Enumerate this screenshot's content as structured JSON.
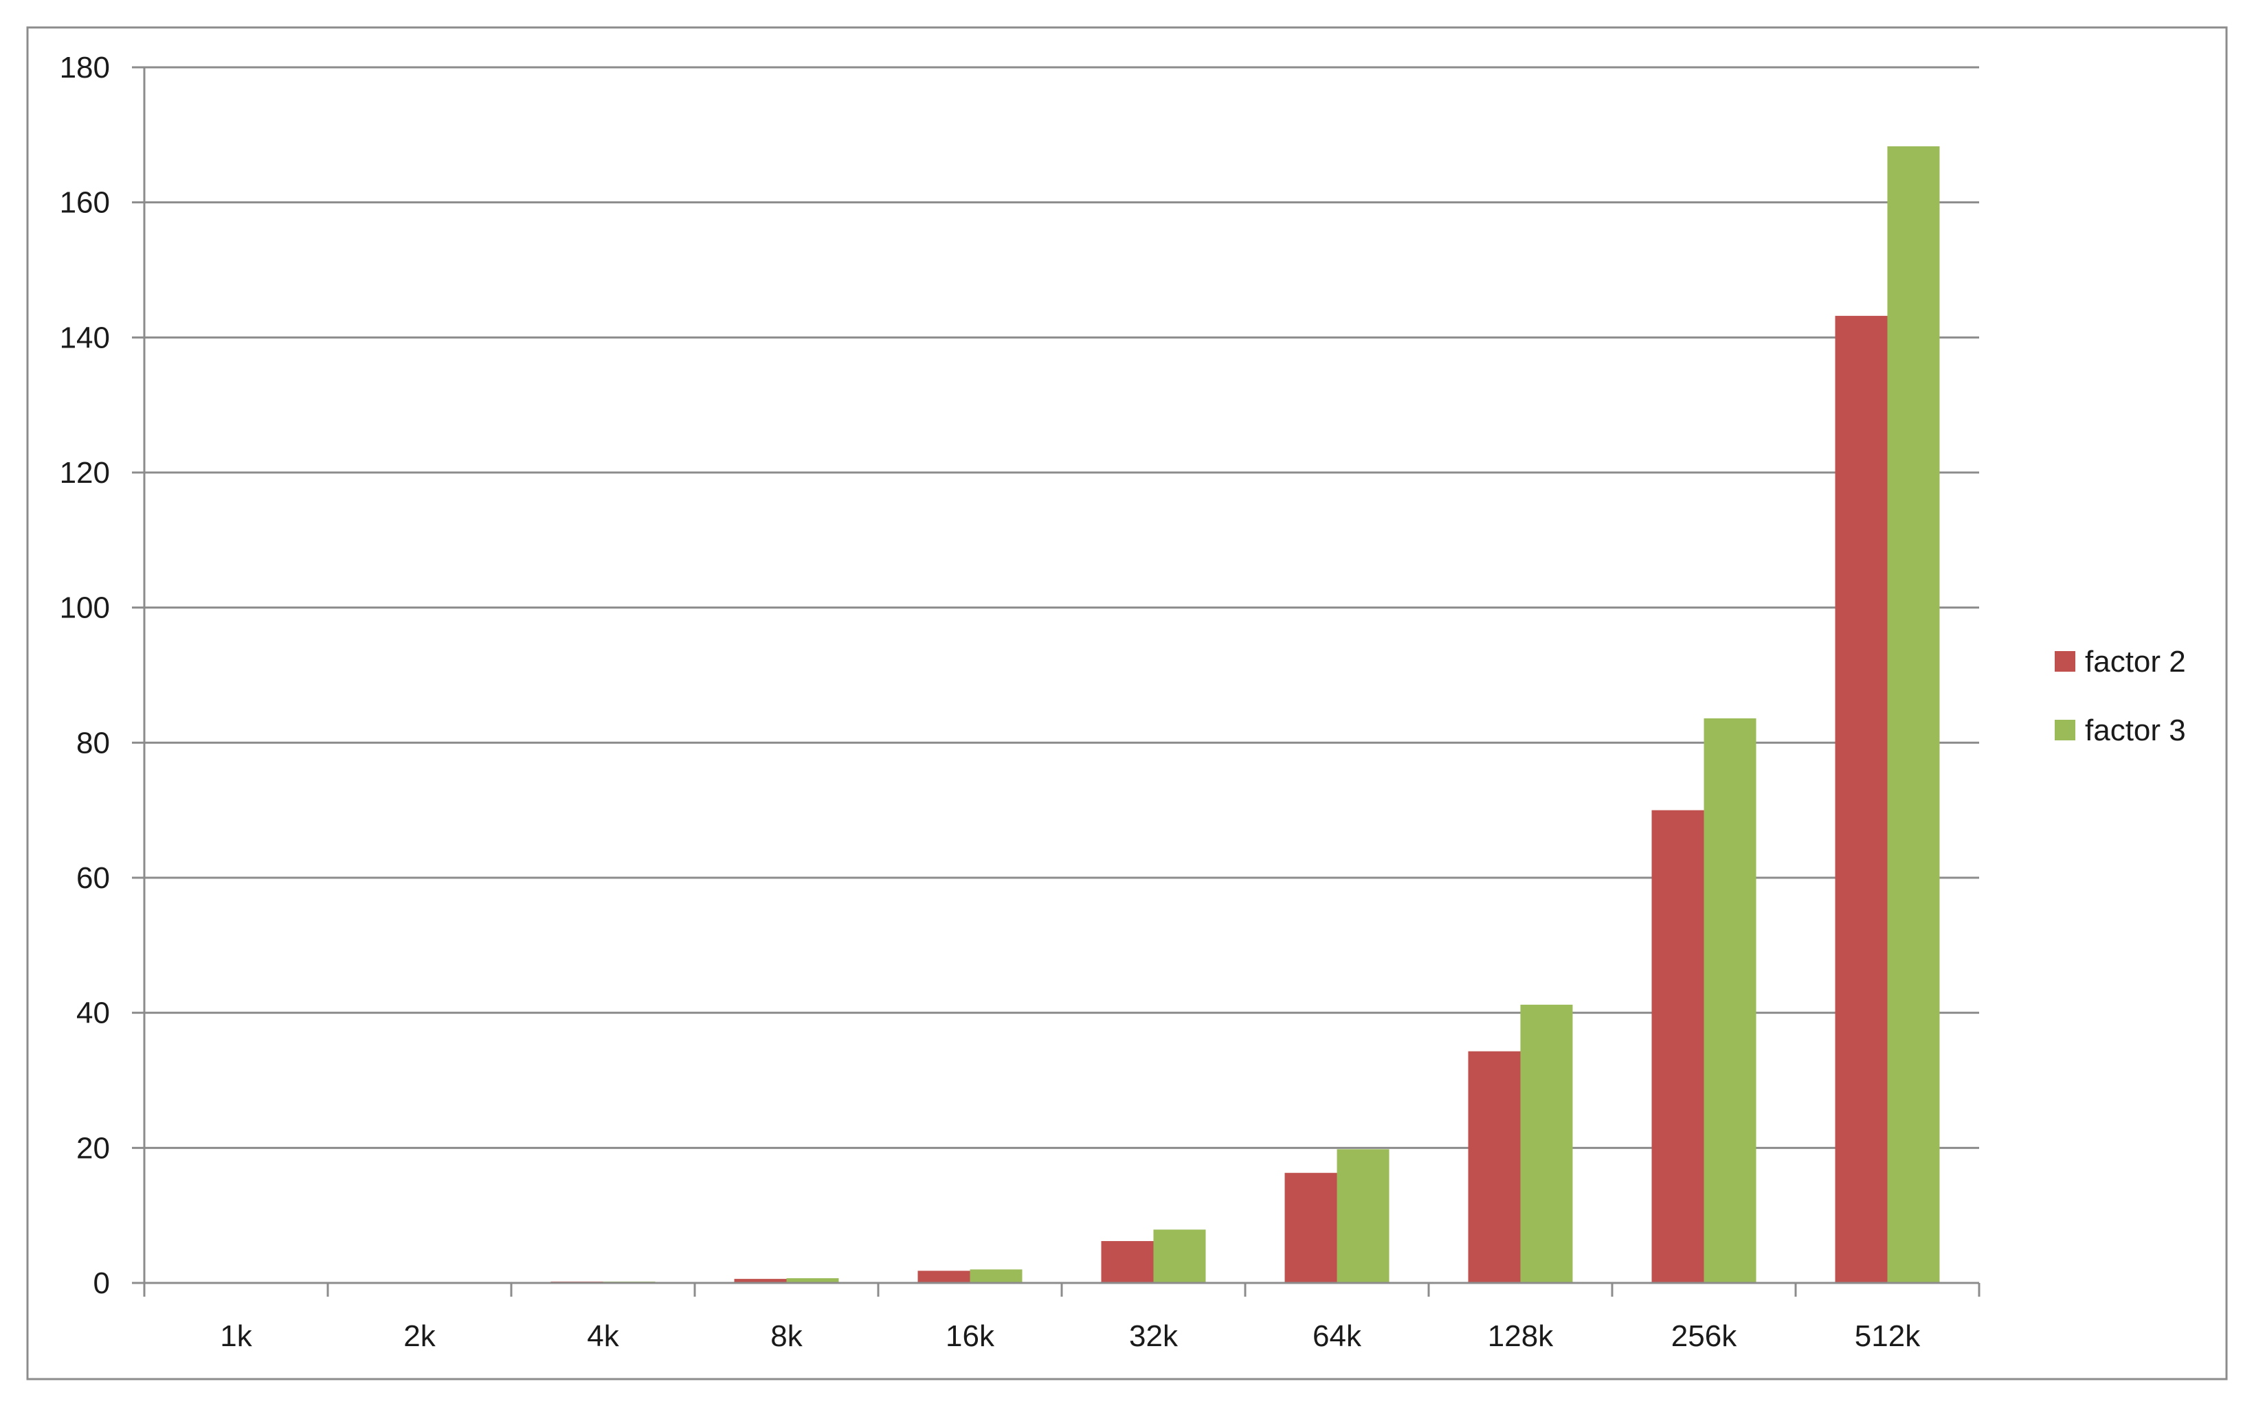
{
  "chart_data": {
    "type": "bar",
    "title": "",
    "xlabel": "",
    "ylabel": "",
    "categories": [
      "1k",
      "2k",
      "4k",
      "8k",
      "16k",
      "32k",
      "64k",
      "128k",
      "256k",
      "512k"
    ],
    "series": [
      {
        "name": "factor 2",
        "color": "#c0504d",
        "values": [
          0.05,
          0.1,
          0.2,
          0.6,
          1.8,
          6.2,
          16.3,
          34.3,
          70.0,
          143.2
        ]
      },
      {
        "name": "factor 3",
        "color": "#9bbb59",
        "values": [
          0.05,
          0.1,
          0.2,
          0.7,
          2.0,
          7.9,
          19.8,
          41.2,
          83.6,
          168.3
        ]
      }
    ],
    "ylim": [
      0,
      180
    ],
    "yticks": [
      0,
      20,
      40,
      60,
      80,
      100,
      120,
      140,
      160,
      180
    ],
    "grid": true,
    "legend_position": "right"
  }
}
